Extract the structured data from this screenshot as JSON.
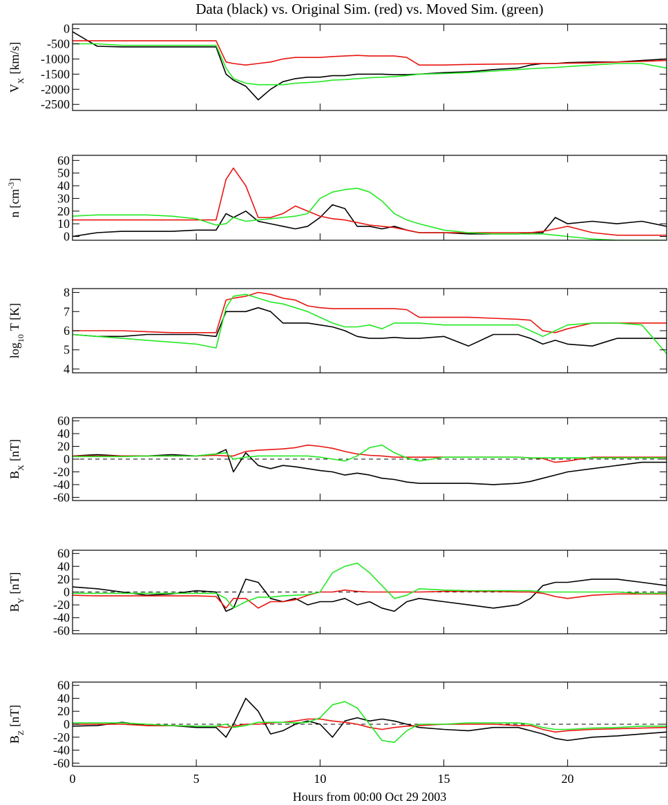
{
  "chart_data": {
    "type": "line",
    "title": "Data (black) vs. Original Sim. (red) vs. Moved Sim. (green)",
    "xlabel": "Hours from 00:00 Oct 29 2003",
    "xlim": [
      0,
      24
    ],
    "xticks": [
      0,
      5,
      10,
      15,
      20
    ],
    "x": [
      0,
      1,
      2,
      3,
      4,
      5,
      5.8,
      6.2,
      6.5,
      7,
      7.5,
      8,
      8.5,
      9,
      9.5,
      10,
      10.5,
      11,
      11.5,
      12,
      12.5,
      13,
      13.5,
      14,
      15,
      16,
      17,
      18,
      18.5,
      19,
      19.5,
      20,
      21,
      22,
      23,
      24
    ],
    "panels": [
      {
        "ylabel": {
          "base": "V",
          "sub": "X",
          "unit": "[km/s]"
        },
        "ylim": [
          -2700,
          150
        ],
        "yticks": [
          0,
          -500,
          -1000,
          -1500,
          -2000,
          -2500
        ],
        "zero_line": false,
        "series": [
          {
            "color": "#000000",
            "values": [
              -100,
              -580,
              -600,
              -600,
              -600,
              -600,
              -600,
              -1500,
              -1700,
              -1900,
              -2350,
              -2000,
              -1750,
              -1650,
              -1600,
              -1600,
              -1550,
              -1550,
              -1500,
              -1500,
              -1500,
              -1520,
              -1520,
              -1500,
              -1450,
              -1420,
              -1350,
              -1300,
              -1200,
              -1150,
              -1150,
              -1120,
              -1100,
              -1100,
              -1050,
              -1000
            ]
          },
          {
            "color": "#e8140f",
            "values": [
              -400,
              -400,
              -400,
              -400,
              -400,
              -400,
              -400,
              -1100,
              -1150,
              -1200,
              -1150,
              -1100,
              -1000,
              -950,
              -950,
              -950,
              -920,
              -900,
              -880,
              -900,
              -900,
              -900,
              -950,
              -1200,
              -1200,
              -1180,
              -1170,
              -1160,
              -1150,
              -1150,
              -1150,
              -1140,
              -1130,
              -1100,
              -1080,
              -1050
            ]
          },
          {
            "color": "#22e822",
            "values": [
              -500,
              -500,
              -550,
              -550,
              -550,
              -550,
              -550,
              -1300,
              -1650,
              -1800,
              -1850,
              -1850,
              -1850,
              -1800,
              -1780,
              -1750,
              -1700,
              -1680,
              -1650,
              -1620,
              -1600,
              -1580,
              -1550,
              -1500,
              -1480,
              -1450,
              -1400,
              -1350,
              -1320,
              -1300,
              -1280,
              -1250,
              -1200,
              -1150,
              -1150,
              -1300
            ]
          }
        ]
      },
      {
        "ylabel": {
          "base": "n [cm",
          "sup": "-3",
          "unit": "]"
        },
        "ylim": [
          -3,
          64
        ],
        "yticks": [
          0,
          10,
          20,
          30,
          40,
          50,
          60
        ],
        "zero_line": false,
        "series": [
          {
            "color": "#000000",
            "values": [
              0,
              3,
              4,
              4,
              4,
              5,
              5,
              18,
              15,
              20,
              12,
              10,
              8,
              6,
              8,
              15,
              25,
              22,
              8,
              8,
              6,
              8,
              5,
              3,
              3,
              2,
              2,
              2,
              3,
              3,
              15,
              10,
              12,
              10,
              12,
              8
            ]
          },
          {
            "color": "#e8140f",
            "values": [
              13,
              13,
              13,
              13,
              13,
              13,
              13,
              45,
              54,
              40,
              15,
              15,
              18,
              24,
              20,
              16,
              14,
              13,
              11,
              9,
              8,
              7,
              5,
              3,
              3,
              3,
              3,
              3,
              3,
              4,
              6,
              8,
              3,
              1,
              1,
              1
            ]
          },
          {
            "color": "#22e822",
            "values": [
              16,
              17,
              17,
              17,
              16,
              14,
              9,
              10,
              15,
              12,
              13,
              14,
              15,
              16,
              18,
              30,
              35,
              37,
              38,
              35,
              28,
              18,
              13,
              10,
              5,
              3,
              2,
              2,
              2,
              2,
              1,
              0,
              -2,
              -3,
              -3,
              -3
            ]
          }
        ]
      },
      {
        "ylabel": {
          "base": "log",
          "sub": "10",
          "unit": "T [K]"
        },
        "ylim": [
          3.8,
          8.2
        ],
        "yticks": [
          4,
          5,
          6,
          7,
          8
        ],
        "zero_line": false,
        "series": [
          {
            "color": "#000000",
            "values": [
              5.8,
              5.7,
              5.7,
              5.8,
              5.8,
              5.8,
              5.7,
              7.0,
              7.0,
              7.0,
              7.2,
              7.0,
              6.4,
              6.4,
              6.4,
              6.3,
              6.2,
              6.0,
              5.7,
              5.6,
              5.6,
              5.65,
              5.6,
              5.6,
              5.7,
              5.2,
              5.8,
              5.8,
              5.6,
              5.3,
              5.5,
              5.3,
              5.2,
              5.6,
              5.6,
              5.6
            ]
          },
          {
            "color": "#e8140f",
            "values": [
              6.0,
              6.0,
              6.0,
              5.95,
              5.9,
              5.9,
              5.9,
              7.6,
              7.7,
              7.8,
              8.0,
              7.9,
              7.7,
              7.6,
              7.3,
              7.2,
              7.15,
              7.15,
              7.15,
              7.15,
              7.15,
              7.15,
              7.1,
              6.7,
              6.7,
              6.7,
              6.65,
              6.6,
              6.55,
              6.0,
              5.9,
              6.1,
              6.4,
              6.4,
              6.4,
              6.4
            ]
          },
          {
            "color": "#22e822",
            "values": [
              5.8,
              5.7,
              5.6,
              5.5,
              5.4,
              5.3,
              5.1,
              7.2,
              7.8,
              7.9,
              7.7,
              7.5,
              7.4,
              7.2,
              7.0,
              6.7,
              6.4,
              6.2,
              6.2,
              6.3,
              6.1,
              6.4,
              6.4,
              6.4,
              6.3,
              6.3,
              6.3,
              6.3,
              6.0,
              5.7,
              6.0,
              6.3,
              6.4,
              6.4,
              6.3,
              4.8
            ]
          }
        ]
      },
      {
        "ylabel": {
          "base": "B",
          "sub": "X",
          "unit": "[nT]"
        },
        "ylim": [
          -65,
          65
        ],
        "yticks": [
          60,
          40,
          20,
          0,
          -20,
          -40,
          -60
        ],
        "zero_line": true,
        "series": [
          {
            "color": "#000000",
            "values": [
              5,
              7,
              5,
              5,
              7,
              5,
              8,
              15,
              -20,
              10,
              -10,
              -15,
              -10,
              -12,
              -15,
              -18,
              -20,
              -25,
              -22,
              -25,
              -30,
              -32,
              -36,
              -38,
              -38,
              -38,
              -40,
              -38,
              -35,
              -30,
              -25,
              -20,
              -15,
              -10,
              -5,
              -5
            ]
          },
          {
            "color": "#e8140f",
            "values": [
              5,
              5,
              5,
              5,
              5,
              5,
              6,
              5,
              5,
              12,
              14,
              15,
              16,
              18,
              22,
              20,
              17,
              12,
              8,
              6,
              5,
              3,
              3,
              3,
              3,
              3,
              3,
              3,
              2,
              1,
              -5,
              -3,
              3,
              3,
              3,
              3
            ]
          },
          {
            "color": "#22e822",
            "values": [
              4,
              4,
              4,
              5,
              5,
              5,
              8,
              10,
              0,
              3,
              5,
              5,
              5,
              5,
              5,
              3,
              0,
              -3,
              5,
              18,
              22,
              10,
              2,
              -3,
              3,
              3,
              3,
              3,
              2,
              2,
              2,
              2,
              2,
              2,
              2,
              2
            ]
          }
        ]
      },
      {
        "ylabel": {
          "base": "B",
          "sub": "Y",
          "unit": "[nT]"
        },
        "ylim": [
          -65,
          65
        ],
        "yticks": [
          60,
          40,
          20,
          0,
          -20,
          -40,
          -60
        ],
        "zero_line": true,
        "series": [
          {
            "color": "#000000",
            "values": [
              8,
              5,
              0,
              -5,
              -3,
              2,
              0,
              -30,
              -25,
              20,
              15,
              -10,
              -15,
              -10,
              -20,
              -15,
              -15,
              -10,
              -20,
              -15,
              -25,
              -30,
              -15,
              -10,
              -15,
              -20,
              -25,
              -20,
              -10,
              10,
              15,
              15,
              20,
              20,
              15,
              10
            ]
          },
          {
            "color": "#e8140f",
            "values": [
              -5,
              -6,
              -6,
              -6,
              -6,
              -6,
              -7,
              -25,
              -10,
              -10,
              -25,
              -15,
              -15,
              -12,
              -5,
              0,
              0,
              3,
              1,
              0,
              0,
              0,
              0,
              0,
              1,
              1,
              1,
              0,
              0,
              -2,
              -7,
              -10,
              -5,
              -3,
              -3,
              -3
            ]
          },
          {
            "color": "#22e822",
            "values": [
              -2,
              -2,
              -2,
              -2,
              -2,
              -2,
              -2,
              -10,
              -25,
              -15,
              -8,
              -8,
              -6,
              -5,
              -4,
              0,
              30,
              40,
              45,
              30,
              10,
              -10,
              -5,
              5,
              3,
              2,
              2,
              2,
              2,
              0,
              0,
              0,
              0,
              0,
              -2,
              -2
            ]
          }
        ]
      },
      {
        "ylabel": {
          "base": "B",
          "sub": "Z",
          "unit": "[nT]"
        },
        "ylim": [
          -65,
          65
        ],
        "yticks": [
          60,
          40,
          20,
          0,
          -20,
          -40,
          -60
        ],
        "zero_line": true,
        "series": [
          {
            "color": "#000000",
            "values": [
              -3,
              -2,
              3,
              -2,
              -2,
              -5,
              -5,
              -20,
              0,
              40,
              20,
              -15,
              -10,
              0,
              5,
              0,
              -20,
              5,
              10,
              5,
              8,
              5,
              0,
              -5,
              -8,
              -10,
              -5,
              -5,
              -10,
              -15,
              -22,
              -25,
              -20,
              -18,
              -15,
              -12
            ]
          },
          {
            "color": "#e8140f",
            "values": [
              0,
              0,
              0,
              -2,
              -2,
              -3,
              -3,
              -5,
              -3,
              0,
              0,
              2,
              3,
              5,
              8,
              8,
              5,
              3,
              0,
              -5,
              -8,
              -5,
              -3,
              -2,
              0,
              0,
              0,
              -2,
              -2,
              -8,
              -12,
              -10,
              -8,
              -7,
              -6,
              -5
            ]
          },
          {
            "color": "#22e822",
            "values": [
              2,
              2,
              2,
              0,
              -2,
              -3,
              -3,
              0,
              -5,
              -2,
              3,
              3,
              3,
              2,
              3,
              10,
              30,
              35,
              25,
              0,
              -25,
              -28,
              -10,
              0,
              0,
              2,
              2,
              2,
              0,
              -5,
              -8,
              -8,
              -6,
              -5,
              -3,
              -3
            ]
          }
        ]
      }
    ]
  }
}
